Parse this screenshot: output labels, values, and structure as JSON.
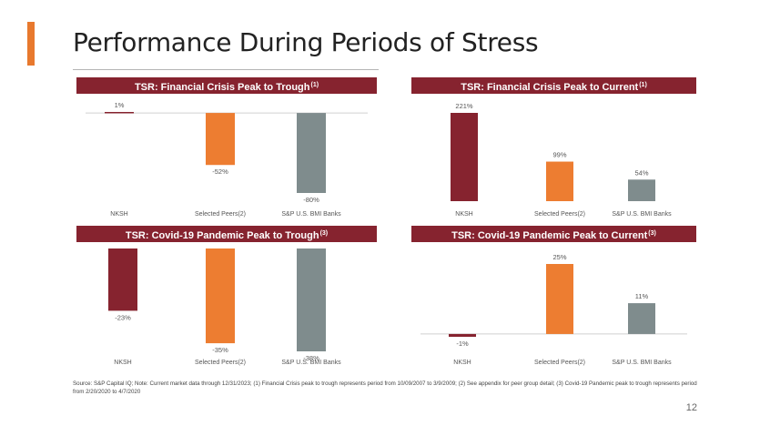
{
  "page": {
    "title": "Performance During Periods of Stress",
    "footnote": "Source: S&P Capital IQ; Note: Current market data through 12/31/2023; (1) Financial Crisis peak to trough represents period from 10/09/2007 to 3/9/2009; (2) See appendix for peer group detail; (3) Covid-19 Pandemic peak to trough represents period from 2/20/2020 to 4/7/2020",
    "page_number": "12"
  },
  "colors": {
    "accent": "#E8792E",
    "header_bg": "#86232F",
    "nksh": "#86232F",
    "peers": "#ED7D31",
    "banks": "#7F8C8D"
  },
  "chart_data": [
    {
      "type": "bar",
      "title": "TSR: Financial Crisis Peak to Trough",
      "title_note": "(1)",
      "categories": [
        "NKSH",
        "Selected Peers(2)",
        "S&P U.S. BMI Banks"
      ],
      "values": [
        1,
        -52,
        -80
      ],
      "labels": [
        "1%",
        "-52%",
        "-80%"
      ],
      "ylim": [
        -80,
        1
      ]
    },
    {
      "type": "bar",
      "title": "TSR: Financial Crisis Peak to Current",
      "title_note": "(1)",
      "categories": [
        "NKSH",
        "Selected Peers(2)",
        "S&P U.S. BMI Banks"
      ],
      "values": [
        221,
        99,
        54
      ],
      "labels": [
        "221%",
        "99%",
        "54%"
      ],
      "ylim": [
        0,
        221
      ]
    },
    {
      "type": "bar",
      "title": "TSR: Covid-19 Pandemic Peak to Trough",
      "title_note": "(3)",
      "categories": [
        "NKSH",
        "Selected Peers(2)",
        "S&P U.S. BMI Banks"
      ],
      "values": [
        -23,
        -35,
        -38
      ],
      "labels": [
        "-23%",
        "-35%",
        "-38%"
      ],
      "ylim": [
        -38,
        0
      ]
    },
    {
      "type": "bar",
      "title": "TSR: Covid-19 Pandemic Peak to Current",
      "title_note": "(3)",
      "categories": [
        "NKSH",
        "Selected Peers(2)",
        "S&P U.S. BMI Banks"
      ],
      "values": [
        -1,
        25,
        11
      ],
      "labels": [
        "-1%",
        "25%",
        "11%"
      ],
      "ylim": [
        -1,
        25
      ]
    }
  ]
}
